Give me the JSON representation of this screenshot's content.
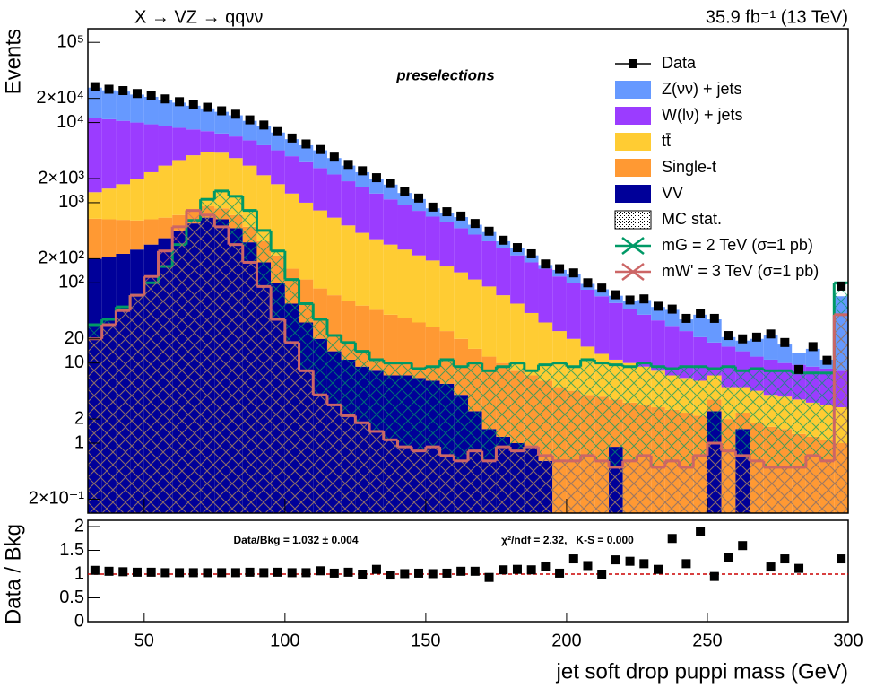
{
  "chart_data": {
    "type": "histogram",
    "title": "X → VZ → qqνν",
    "subtitle": "35.9 fb⁻¹ (13 TeV)",
    "annotation": "preselections",
    "y_label": "Events",
    "x_label": "jet soft drop puppi mass (GeV)",
    "xlim": [
      30,
      300
    ],
    "xticks": [
      50,
      100,
      150,
      200,
      250,
      300
    ],
    "ylim": [
      0.134,
      148000
    ],
    "log_y": true,
    "yticks": [
      {
        "value": 0.2,
        "label": "2×10⁻¹"
      },
      1,
      2,
      10,
      20,
      {
        "value": 100,
        "label": "10²"
      },
      {
        "value": 200,
        "label": "2×10²"
      },
      {
        "value": 1000,
        "label": "10³"
      },
      {
        "value": 2000,
        "label": "2×10³"
      },
      {
        "value": 10000,
        "label": "10⁴"
      },
      {
        "value": 20000,
        "label": "2×10⁴"
      },
      {
        "value": 100000,
        "label": "10⁵"
      }
    ],
    "bins": [
      30,
      35,
      40,
      45,
      50,
      55,
      60,
      65,
      70,
      75,
      80,
      85,
      90,
      95,
      100,
      105,
      110,
      115,
      120,
      125,
      130,
      135,
      140,
      145,
      150,
      155,
      160,
      165,
      170,
      175,
      180,
      185,
      190,
      195,
      200,
      205,
      210,
      215,
      220,
      225,
      230,
      235,
      240,
      245,
      250,
      255,
      260,
      265,
      270,
      275,
      280,
      285,
      290,
      295,
      300
    ],
    "data": {
      "name": "Data",
      "color": "#000000",
      "values": [
        28000,
        26000,
        25000,
        23000,
        21500,
        19700,
        18200,
        16700,
        15500,
        14000,
        12700,
        10800,
        9300,
        7700,
        6400,
        5400,
        4600,
        3700,
        3000,
        2500,
        2050,
        1730,
        1360,
        1140,
        880,
        770,
        680,
        550,
        440,
        340,
        275,
        230,
        172,
        150,
        133,
        100,
        86,
        71,
        61,
        63,
        51,
        47,
        36,
        41,
        36,
        22,
        20,
        21,
        23,
        18,
        8.3,
        16,
        10.8,
        91
      ]
    },
    "series": [
      {
        "name": "Z(νν) + jets",
        "color": "#6699ff",
        "values": [
          15700,
          14200,
          13800,
          12300,
          11400,
          10100,
          9100,
          8000,
          7200,
          6300,
          5600,
          4500,
          3800,
          3000,
          2400,
          2000,
          1800,
          1350,
          1050,
          850,
          700,
          580,
          390,
          320,
          180,
          180,
          180,
          130,
          100,
          60,
          50,
          40,
          17,
          25,
          30,
          15,
          15,
          13,
          12,
          21,
          16,
          17,
          10,
          19,
          17,
          5,
          5,
          8,
          11,
          7,
          4,
          6,
          2.5,
          60
        ]
      },
      {
        "name": "W(lν) + jets",
        "color": "#9b3cff",
        "values": [
          10150,
          9500,
          8800,
          8000,
          7100,
          6100,
          5200,
          4300,
          3500,
          3100,
          3100,
          3100,
          3000,
          2800,
          2500,
          2200,
          1900,
          1600,
          1330,
          1130,
          950,
          800,
          670,
          570,
          480,
          410,
          345,
          290,
          240,
          200,
          165,
          138,
          118,
          95,
          80,
          66,
          55,
          45,
          37,
          31,
          26,
          22,
          18.5,
          15,
          11,
          11,
          9,
          7.5,
          7,
          6.2,
          6,
          5.8,
          5.5,
          5.2
        ]
      },
      {
        "name": "tt̄",
        "color": "#ffcc33",
        "values": [
          720,
          880,
          1090,
          1400,
          1780,
          2250,
          2700,
          3100,
          3400,
          3350,
          2900,
          2400,
          1870,
          1480,
          1150,
          890,
          715,
          580,
          460,
          368,
          304,
          260,
          224,
          188,
          162,
          135,
          115,
          95,
          78,
          60,
          47,
          35,
          26,
          20,
          15.5,
          12,
          9.2,
          7.5,
          6.8,
          6,
          5.2,
          4.4,
          4.1,
          3.8,
          3.5,
          3,
          2.6,
          2.7,
          2.4,
          2.3,
          2.2,
          2,
          1.9,
          1.8
        ]
      },
      {
        "name": "Single-t",
        "color": "#ff9933",
        "values": [
          430,
          410,
          380,
          340,
          320,
          290,
          250,
          250,
          250,
          230,
          220,
          180,
          150,
          120,
          95,
          78,
          65,
          56,
          49,
          43,
          38,
          33,
          29,
          25.5,
          22,
          19.5,
          16,
          12.5,
          10.5,
          8.8,
          7,
          6.1,
          5.4,
          5,
          4.5,
          4,
          3.8,
          2.6,
          3.2,
          3,
          2.8,
          2.6,
          2.4,
          2.2,
          1.0,
          2,
          0.9,
          1.8,
          1.6,
          1.5,
          1.3,
          1.2,
          1.1,
          1.0
        ]
      },
      {
        "name": "VV",
        "color": "#000099",
        "values": [
          200,
          210,
          230,
          260,
          300,
          360,
          450,
          550,
          650,
          620,
          480,
          320,
          180,
          100,
          55,
          32,
          20,
          14,
          11,
          9,
          8,
          7,
          7,
          6.5,
          6,
          5.5,
          4,
          2.5,
          1.5,
          1.2,
          1.0,
          0.9,
          0.6,
          0,
          0,
          0,
          0,
          0.9,
          0,
          0,
          0,
          0,
          0,
          0,
          2.5,
          0,
          1.5,
          0,
          0,
          0,
          0,
          0,
          0,
          0
        ]
      }
    ],
    "mc_stat": {
      "name": "MC stat."
    },
    "signals": [
      {
        "name": "mG = 2 TeV (σ=1 pb)",
        "color": "#009966",
        "values": [
          30,
          35,
          50,
          70,
          100,
          160,
          300,
          600,
          1100,
          1400,
          1200,
          800,
          450,
          250,
          110,
          55,
          35,
          22,
          18,
          14,
          11,
          10,
          10,
          8.5,
          9,
          11,
          9,
          10,
          8,
          9,
          10,
          8,
          9.5,
          10,
          9,
          11,
          10,
          9.5,
          9,
          10,
          9,
          8.5,
          9,
          9,
          8.5,
          9,
          8,
          8.5,
          8,
          8,
          7.5,
          7.5,
          7.5,
          100
        ]
      },
      {
        "name": "mW' = 3 TeV (σ=1 pb)",
        "color": "#cc6666",
        "values": [
          20,
          30,
          45,
          70,
          120,
          250,
          500,
          800,
          700,
          500,
          300,
          180,
          90,
          35,
          18,
          8,
          4,
          3,
          2.2,
          1.8,
          1.4,
          1.1,
          0.9,
          0.8,
          0.9,
          0.7,
          0.6,
          0.8,
          0.6,
          0.9,
          0.8,
          0.9,
          0.7,
          0.6,
          0.6,
          0.7,
          0.6,
          0.5,
          0.6,
          0.7,
          0.5,
          0.6,
          0.5,
          0.7,
          1.0,
          0.8,
          0.7,
          0.6,
          0.5,
          0.5,
          0.5,
          0.7,
          0.6,
          40
        ]
      }
    ],
    "ratio": {
      "y_label": "Data / Bkg",
      "ylim": [
        0,
        2
      ],
      "yticks": [
        0,
        0.5,
        1,
        1.5,
        2
      ],
      "reference_line": 1,
      "reference_color": "#cc0000",
      "annotation_left": "Data/Bkg = 1.032 ± 0.004",
      "annotation_right": "χ²/ndf = 2.32,   K-S = 0.000",
      "values": [
        1.08,
        1.06,
        1.05,
        1.04,
        1.04,
        1.03,
        1.03,
        1.03,
        1.03,
        1.03,
        1.03,
        1.04,
        1.03,
        1.04,
        1.03,
        1.03,
        1.07,
        1.02,
        1.04,
        1.0,
        1.1,
        0.98,
        1.01,
        1.02,
        1.01,
        1.02,
        1.06,
        1.06,
        0.93,
        1.09,
        1.1,
        1.09,
        1.17,
        1.02,
        1.32,
        1.18,
        1.0,
        1.3,
        1.27,
        1.22,
        1.1,
        1.75,
        1.22,
        1.9,
        0.95,
        1.35,
        1.6,
        null,
        1.15,
        1.32,
        1.12,
        null,
        null,
        1.32
      ]
    }
  }
}
